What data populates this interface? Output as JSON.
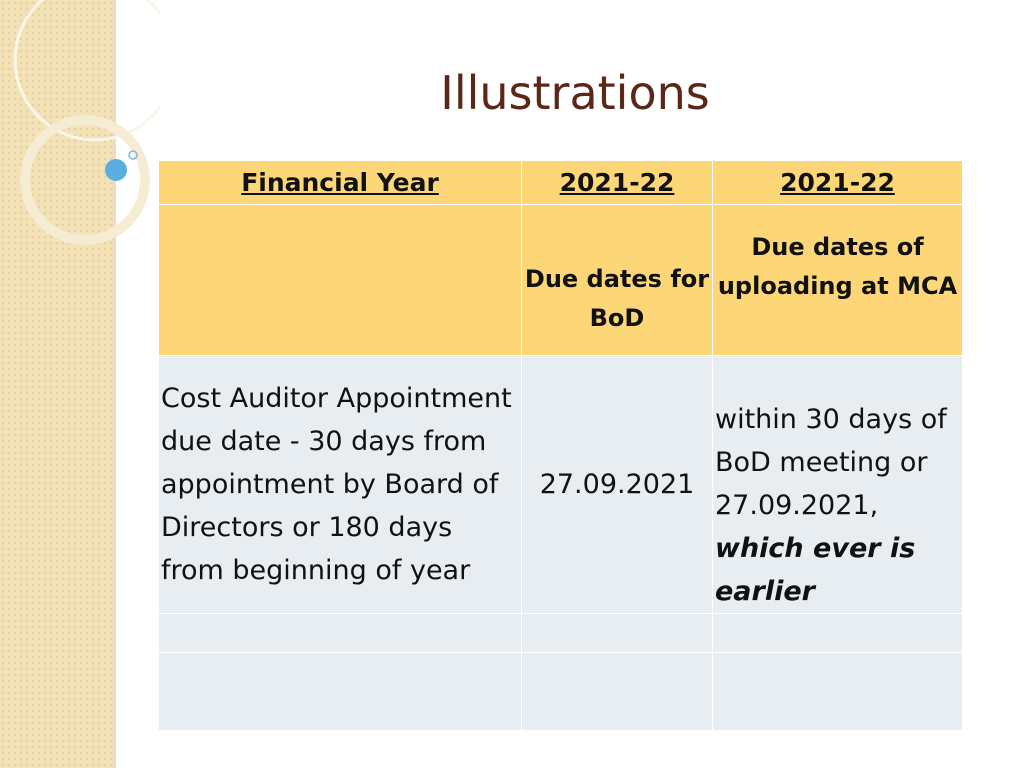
{
  "title": "Illustrations",
  "table": {
    "header": [
      "Financial Year",
      "2021-22",
      "2021-22"
    ],
    "rows": [
      [
        null,
        "Due dates for BoD",
        "Due dates of uploading at MCA"
      ],
      [
        "Cost Auditor Appointment due date - 30 days from appointment by Board of Directors or 180 days from beginning of year",
        "27.09.2021",
        {
          "text": "within 30 days of BoD meeting or 27.09.2021,",
          "emphasis": "which ever is earlier"
        }
      ],
      [
        null,
        null,
        null
      ],
      [
        null,
        null,
        null
      ]
    ]
  }
}
